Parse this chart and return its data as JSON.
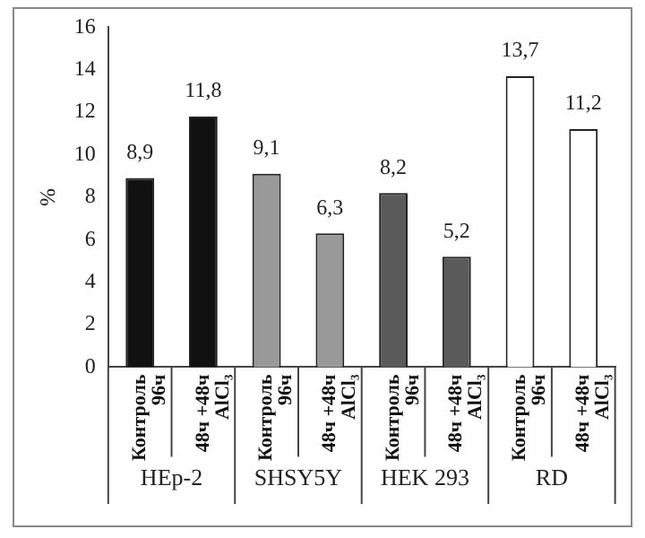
{
  "chart_data": {
    "type": "bar",
    "ylabel": "%",
    "categories": [
      "Контроль 96ч",
      "48ч +48ч AlCl₃",
      "Контроль 96ч",
      "48ч +48ч AlCl₃",
      "Контроль 96ч",
      "48ч +48ч AlCl₃",
      "Контроль 96ч",
      "48ч +48ч AlCl₃"
    ],
    "values": [
      8.9,
      11.8,
      9.1,
      6.3,
      8.2,
      5.2,
      13.7,
      11.2
    ],
    "colors": [
      "#111111",
      "#111111",
      "#999999",
      "#999999",
      "#5a5a5a",
      "#5a5a5a",
      "#ffffff",
      "#ffffff"
    ],
    "value_labels": [
      "8,9",
      "11,8",
      "9,1",
      "6,3",
      "8,2",
      "5,2",
      "13,7",
      "11,2"
    ],
    "annotations": [
      "HEp-2",
      "SHSY5Y",
      "HEK 293",
      "RD"
    ],
    "ylim": [
      0,
      16
    ],
    "yticks": [
      0,
      2,
      4,
      6,
      8,
      10,
      12,
      14,
      16
    ],
    "grid": false,
    "legend": false
  }
}
